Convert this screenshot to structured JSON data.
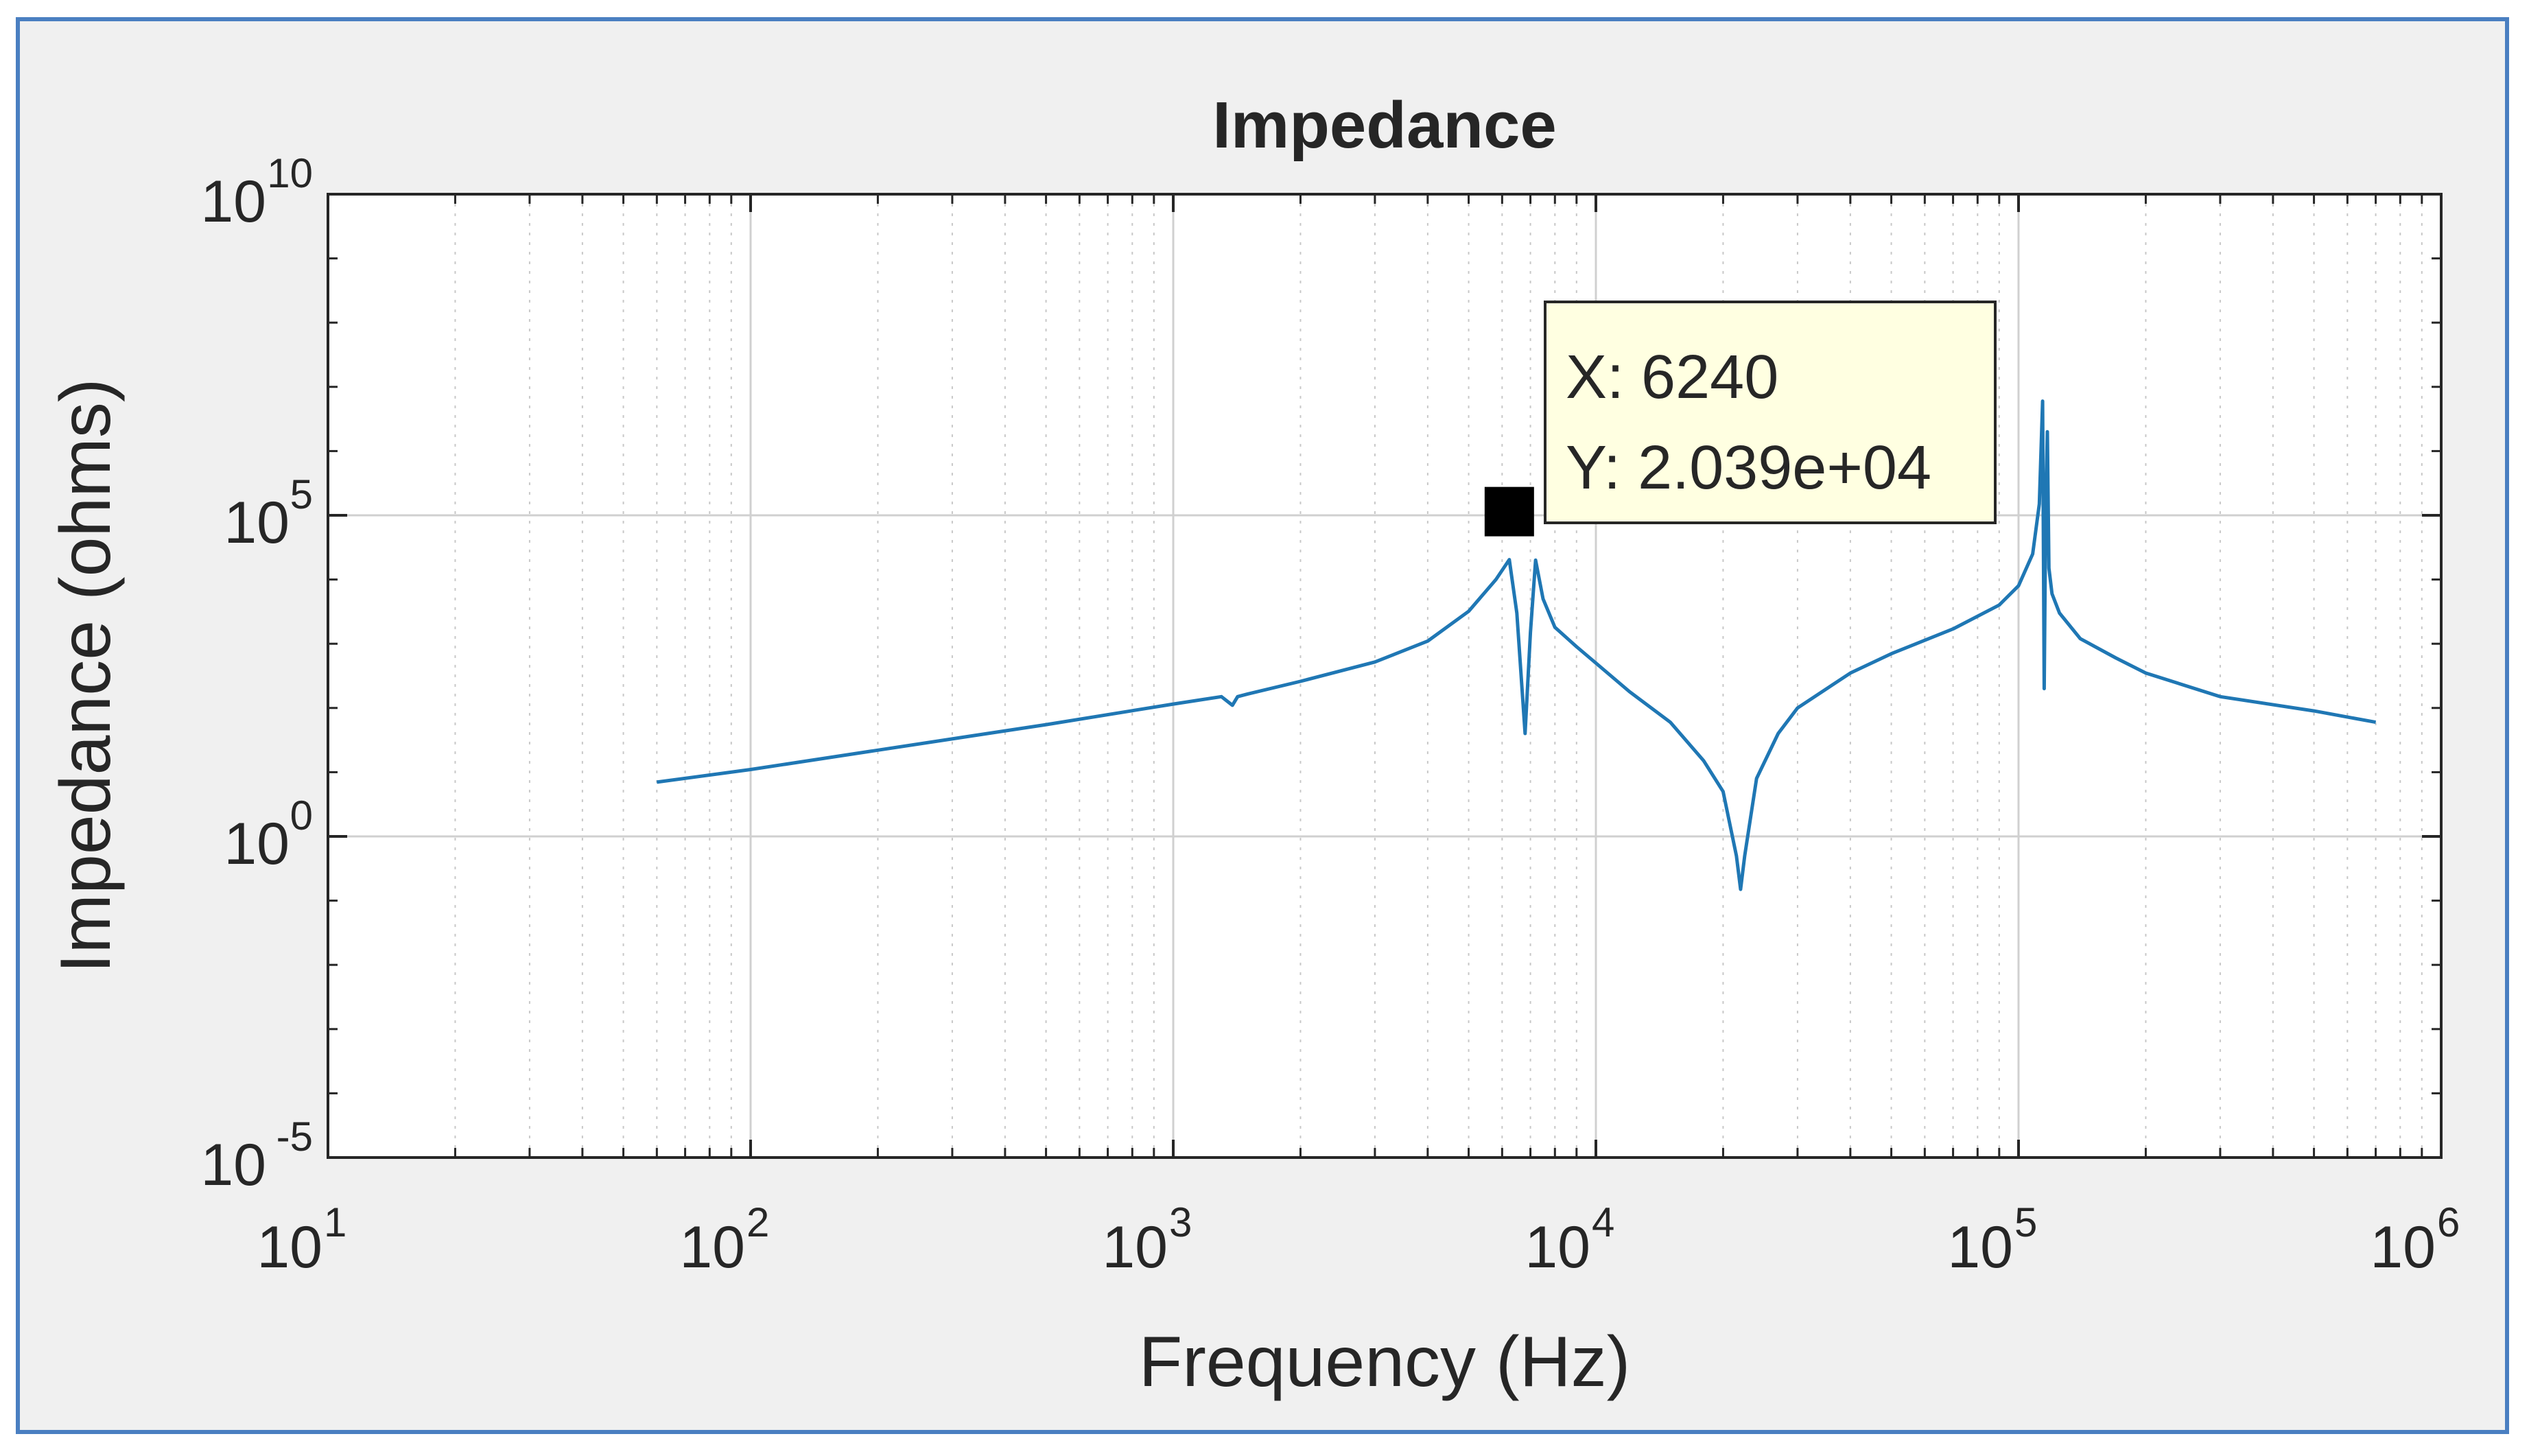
{
  "colors": {
    "frame_border": "#4a7fc1",
    "figure_background": "#f0f0f0",
    "axes_background": "#ffffff",
    "series": "#1f77b4",
    "datatip_background": "#ffffe1",
    "grid": "#d9d9d9"
  },
  "chart_data": {
    "type": "line",
    "title": "Impedance",
    "xlabel": "Frequency (Hz)",
    "ylabel": "Impedance (ohms)",
    "xscale": "log",
    "yscale": "log",
    "xlim": [
      10,
      1000000
    ],
    "ylim": [
      1e-05,
      10000000000
    ],
    "grid": "on (major and minor)",
    "x_ticks": [
      {
        "value": 10,
        "base": "10",
        "exp": "1"
      },
      {
        "value": 100,
        "base": "10",
        "exp": "2"
      },
      {
        "value": 1000,
        "base": "10",
        "exp": "3"
      },
      {
        "value": 10000,
        "base": "10",
        "exp": "4"
      },
      {
        "value": 100000,
        "base": "10",
        "exp": "5"
      },
      {
        "value": 1000000,
        "base": "10",
        "exp": "6"
      }
    ],
    "y_ticks": [
      {
        "value": 1e-05,
        "base": "10",
        "exp": "-5"
      },
      {
        "value": 1,
        "base": "10",
        "exp": "0"
      },
      {
        "value": 100000,
        "base": "10",
        "exp": "5"
      },
      {
        "value": 10000000000,
        "base": "10",
        "exp": "10"
      }
    ],
    "series": [
      {
        "x": [
          60,
          100,
          200,
          500,
          1000,
          1300,
          1380,
          1420,
          1500,
          2000,
          3000,
          4000,
          5000,
          5800,
          6240,
          6500,
          6800,
          7000,
          7200,
          7500,
          8000,
          9000,
          10000,
          12000,
          15000,
          18000,
          20000,
          21500,
          22000,
          22500,
          24000,
          27000,
          30000,
          40000,
          50000,
          70000,
          90000,
          100000,
          108000,
          112000,
          114000,
          115000,
          116000,
          117000,
          118000,
          120000,
          125000,
          140000,
          170000,
          200000,
          300000,
          500000,
          700000
        ],
        "y": [
          7,
          11,
          22,
          55,
          115,
          150,
          110,
          150,
          165,
          260,
          520,
          1100,
          3200,
          10000,
          20390,
          3000,
          40,
          1500,
          20000,
          5000,
          1800,
          900,
          500,
          180,
          60,
          15,
          5,
          0.5,
          0.15,
          0.5,
          8,
          40,
          100,
          350,
          700,
          1700,
          4000,
          8000,
          25000,
          150000,
          6000000,
          200,
          150000,
          2000000,
          15000,
          6000,
          3000,
          1200,
          600,
          350,
          150,
          90,
          60
        ]
      }
    ],
    "datatip": {
      "x_label": "X: 6240",
      "y_label": "Y: 2.039e+04",
      "x": 6240,
      "y": 20390
    }
  }
}
